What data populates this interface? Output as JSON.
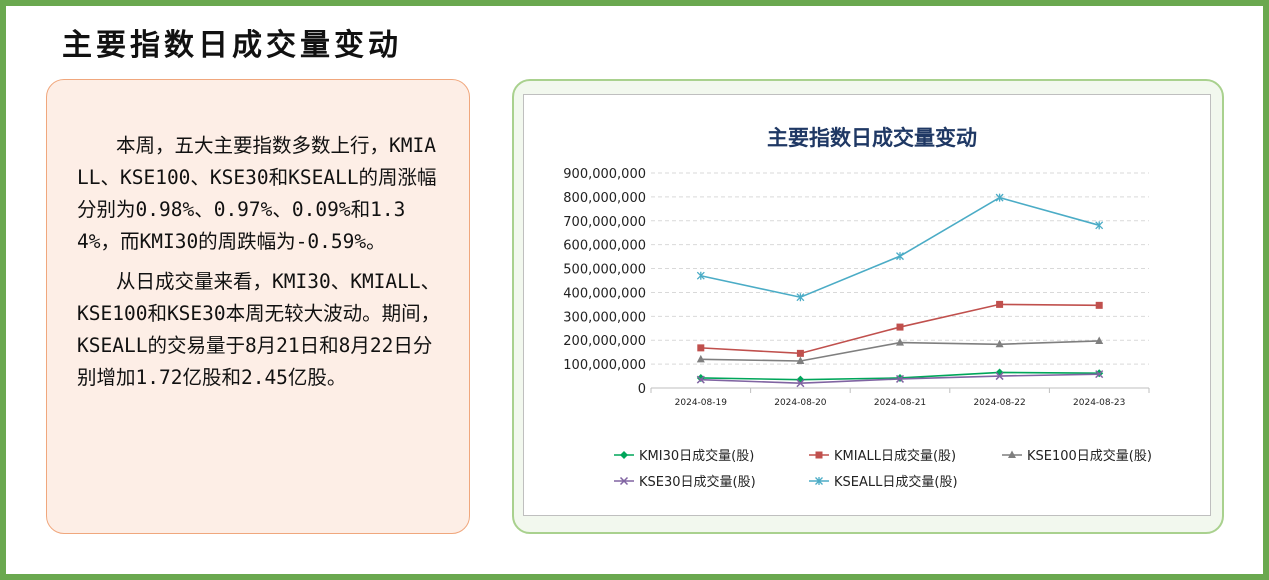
{
  "page": {
    "title": "主要指数日成交量变动",
    "paragraphs": [
      "本周，五大主要指数多数上行，KMIALL、KSE100、KSE30和KSEALL的周涨幅分别为0.98%、0.97%、0.09%和1.34%，而KMI30的周跌幅为-0.59%。",
      "从日成交量来看，KMI30、KMIALL、KSE100和KSE30本周无较大波动。期间，KSEALL的交易量于8月21日和8月22日分别增加1.72亿股和2.45亿股。"
    ]
  },
  "colors": {
    "frame": "#6aa84f",
    "text_panel_bg": "#fdeee6",
    "text_panel_border": "#f0a77d",
    "chart_panel_bg": "#f2f8ee",
    "chart_panel_border": "#a9d18e",
    "chart_title": "#1f3864"
  },
  "chart_data": {
    "type": "line",
    "title": "主要指数日成交量变动",
    "x": [
      "2024-08-19",
      "2024-08-20",
      "2024-08-21",
      "2024-08-22",
      "2024-08-23"
    ],
    "ylim": [
      0,
      900000000
    ],
    "yticks": [
      0,
      100000000,
      200000000,
      300000000,
      400000000,
      500000000,
      600000000,
      700000000,
      800000000,
      900000000
    ],
    "ytick_labels": [
      "0",
      "100,000,000",
      "200,000,000",
      "300,000,000",
      "400,000,000",
      "500,000,000",
      "600,000,000",
      "700,000,000",
      "800,000,000",
      "900,000,000"
    ],
    "grid": "horizontal dashed",
    "legend_position": "bottom",
    "series": [
      {
        "name": "KMI30日成交量(股)",
        "color": "#00a65a",
        "marker": "diamond",
        "values": [
          42000000,
          35000000,
          42000000,
          65000000,
          62000000
        ]
      },
      {
        "name": "KMIALL日成交量(股)",
        "color": "#c0504d",
        "marker": "square",
        "values": [
          168000000,
          145000000,
          255000000,
          350000000,
          346000000
        ]
      },
      {
        "name": "KSE100日成交量(股)",
        "color": "#7f7f7f",
        "marker": "triangle",
        "values": [
          120000000,
          113000000,
          190000000,
          183000000,
          197000000
        ]
      },
      {
        "name": "KSE30日成交量(股)",
        "color": "#8064a2",
        "marker": "x",
        "values": [
          35000000,
          20000000,
          38000000,
          50000000,
          58000000
        ]
      },
      {
        "name": "KSEALL日成交量(股)",
        "color": "#4bacc6",
        "marker": "star",
        "values": [
          470000000,
          380000000,
          552000000,
          797000000,
          681000000
        ]
      }
    ]
  }
}
